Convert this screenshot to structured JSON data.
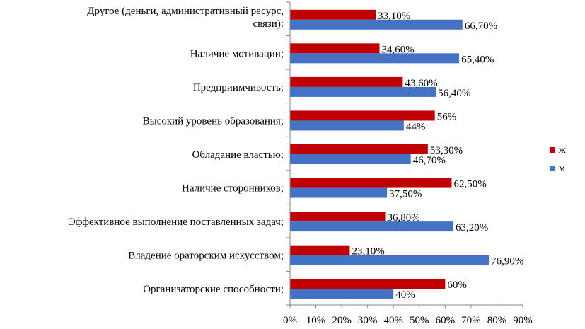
{
  "chart_data": {
    "type": "bar",
    "orientation": "horizontal",
    "categories": [
      [
        "Другое (деньги, административный ресурс,",
        "связи):"
      ],
      [
        "Наличие мотивации;"
      ],
      [
        "Предприимчивость;"
      ],
      [
        "Высокий уровень образования;"
      ],
      [
        "Обладание властью;"
      ],
      [
        "Наличие сторонников;"
      ],
      [
        "Эффективное выполнение поставленных задач;"
      ],
      [
        "Владение ораторским искусством;"
      ],
      [
        "Организаторские способности;"
      ]
    ],
    "series": [
      {
        "name": "ж",
        "color": "#C00000",
        "values": [
          33.1,
          34.6,
          43.6,
          56,
          53.3,
          62.5,
          36.8,
          23.1,
          60
        ],
        "labels": [
          "33,10%",
          "34,60%",
          "43,60%",
          "56%",
          "53,30%",
          "62,50%",
          "36,80%",
          "23,10%",
          "60%"
        ]
      },
      {
        "name": "м",
        "color": "#4472C4",
        "values": [
          66.7,
          65.4,
          56.4,
          44,
          46.7,
          37.5,
          63.2,
          76.9,
          40
        ],
        "labels": [
          "66,70%",
          "65,40%",
          "56,40%",
          "44%",
          "46,70%",
          "37,50%",
          "63,20%",
          "76,90%",
          "40%"
        ]
      }
    ],
    "x_ticks": [
      "0%",
      "10%",
      "20%",
      "30%",
      "40%",
      "50%",
      "60%",
      "70%",
      "80%",
      "90%"
    ],
    "xlim": [
      0,
      90
    ],
    "title": "",
    "xlabel": "",
    "ylabel": "",
    "grid": false,
    "legend_position": "right"
  }
}
